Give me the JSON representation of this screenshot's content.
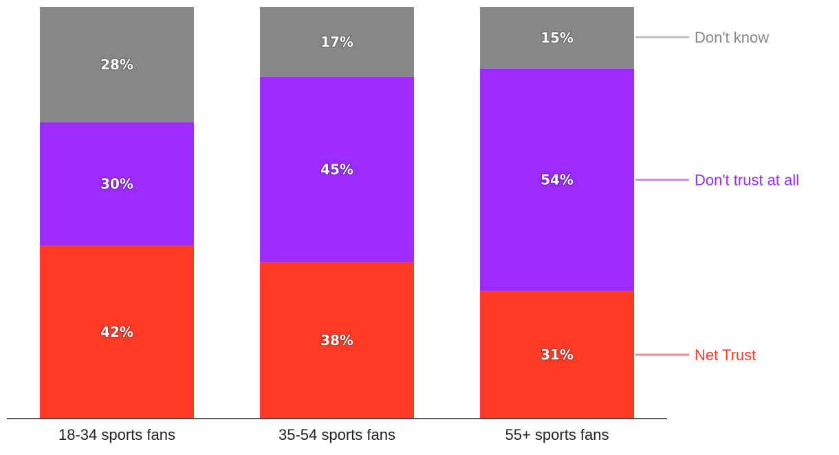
{
  "chart_data": {
    "type": "bar",
    "stacked": true,
    "title": "",
    "xlabel": "",
    "ylabel": "",
    "ylim": [
      0,
      100
    ],
    "grid": false,
    "legend_placement": "right",
    "categories": [
      "18-34 sports fans",
      "35-54 sports fans",
      "55+ sports fans"
    ],
    "series": [
      {
        "name": "Net Trust",
        "values": [
          42,
          38,
          31
        ],
        "labels": [
          "42%",
          "38%",
          "31%"
        ],
        "color": "#ff3b28",
        "legend_color": "#ff3b28",
        "leader_color": "#f08a8a"
      },
      {
        "name": "Don't trust at all",
        "values": [
          30,
          45,
          54
        ],
        "labels": [
          "30%",
          "45%",
          "54%"
        ],
        "color": "#9b2bff",
        "legend_color": "#9b2bff",
        "leader_color": "#d08cf5"
      },
      {
        "name": "Don't know",
        "values": [
          28,
          17,
          15
        ],
        "labels": [
          "28%",
          "17%",
          "15%"
        ],
        "color": "#878787",
        "legend_color": "#878787",
        "leader_color": "#bdbdbd"
      }
    ]
  }
}
